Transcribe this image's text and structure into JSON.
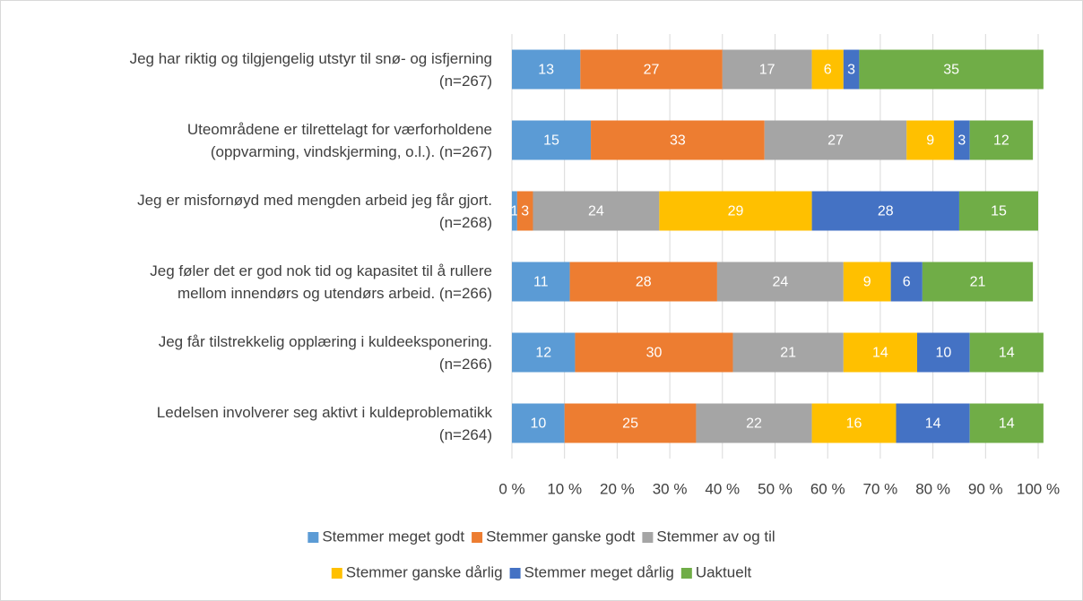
{
  "chart_data": {
    "type": "stacked_bar_horizontal",
    "categories": [
      [
        "Jeg har riktig og tilgjengelig utstyr til snø- og isfjerning",
        "(n=267)"
      ],
      [
        "Uteområdene er tilrettelagt for værforholdene",
        "(oppvarming, vindskjerming, o.l.). (n=267)"
      ],
      [
        "Jeg er misfornøyd med mengden arbeid jeg får gjort.",
        "(n=268)"
      ],
      [
        "Jeg føler det er god nok tid og kapasitet til å rullere",
        "mellom innendørs og utendørs arbeid. (n=266)"
      ],
      [
        "Jeg får tilstrekkelig opplæring i kuldeeksponering.",
        "(n=266)"
      ],
      [
        "Ledelsen involverer seg aktivt i kuldeproblematikk",
        "(n=264)"
      ]
    ],
    "series": [
      {
        "name": "Stemmer meget godt",
        "color": "#5b9bd5",
        "values": [
          13,
          15,
          1,
          11,
          12,
          10
        ]
      },
      {
        "name": "Stemmer ganske godt",
        "color": "#ed7d31",
        "values": [
          27,
          33,
          3,
          28,
          30,
          25
        ]
      },
      {
        "name": "Stemmer av og til",
        "color": "#a5a5a5",
        "values": [
          17,
          27,
          24,
          24,
          21,
          22
        ]
      },
      {
        "name": "Stemmer ganske dårlig",
        "color": "#ffc000",
        "values": [
          6,
          9,
          29,
          9,
          14,
          16
        ]
      },
      {
        "name": "Stemmer meget dårlig",
        "color": "#4472c4",
        "values": [
          3,
          3,
          28,
          6,
          10,
          14
        ]
      },
      {
        "name": "Uaktuelt",
        "color": "#70ad47",
        "values": [
          35,
          12,
          15,
          21,
          14,
          14
        ]
      }
    ],
    "xlim": [
      0,
      100
    ],
    "xticks": [
      {
        "value": 0,
        "label": "0 %"
      },
      {
        "value": 10,
        "label": "10 %"
      },
      {
        "value": 20,
        "label": "20 %"
      },
      {
        "value": 30,
        "label": "30 %"
      },
      {
        "value": 40,
        "label": "40 %"
      },
      {
        "value": 50,
        "label": "50 %"
      },
      {
        "value": 60,
        "label": "60 %"
      },
      {
        "value": 70,
        "label": "70 %"
      },
      {
        "value": 80,
        "label": "80 %"
      },
      {
        "value": 90,
        "label": "90 %"
      },
      {
        "value": 100,
        "label": "100 %"
      }
    ],
    "grid": true,
    "legend": "bottom"
  }
}
